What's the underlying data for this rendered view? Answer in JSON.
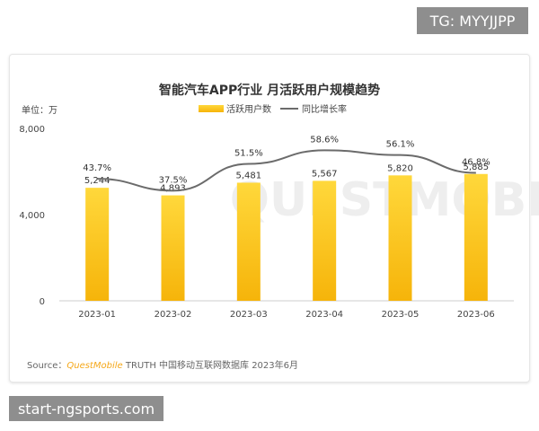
{
  "badges": {
    "top": "TG: MYYJJPP",
    "bottom": "start-ngsports.com"
  },
  "watermark": "QUESTMOBILE",
  "source": {
    "prefix": "Source：",
    "brand": "QuestMobile",
    "suffix": " TRUTH 中国移动互联网数据库 2023年6月"
  },
  "colors": {
    "bar_top": "#FFD83B",
    "bar_bottom": "#F6B40A",
    "line": "#6b6b6b",
    "source_brand": "#f5a81a"
  },
  "chart_data": {
    "type": "bar",
    "title": "智能汽车APP行业 月活跃用户规模趋势",
    "unit_label": "单位：万",
    "categories": [
      "2023-01",
      "2023-02",
      "2023-03",
      "2023-04",
      "2023-05",
      "2023-06"
    ],
    "series": [
      {
        "name": "活跃用户数",
        "type": "bar",
        "values": [
          5244,
          4893,
          5481,
          5567,
          5820,
          5885
        ],
        "labels": [
          "5,244",
          "4,893",
          "5,481",
          "5,567",
          "5,820",
          "5,885"
        ]
      },
      {
        "name": "同比增长率",
        "type": "line",
        "values": [
          43.7,
          37.5,
          51.5,
          58.6,
          56.1,
          46.8
        ],
        "labels": [
          "43.7%",
          "37.5%",
          "51.5%",
          "58.6%",
          "56.1%",
          "46.8%"
        ]
      }
    ],
    "y_ticks": [
      "0",
      "4,000",
      "8,000"
    ],
    "ylim": [
      0,
      8000
    ],
    "line_ylim": [
      -20,
      70
    ],
    "legend_position": "top-center",
    "grid": false
  }
}
